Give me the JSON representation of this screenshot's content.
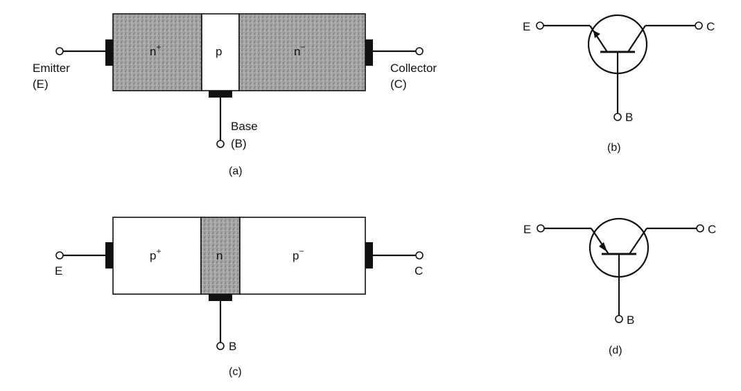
{
  "colors": {
    "ink": "#111111",
    "shaded_region": "#9a9a9a",
    "light_region": "#ffffff"
  },
  "panel_a": {
    "regions": {
      "left": "n",
      "left_sup": "+",
      "middle": "p",
      "right": "n",
      "right_sup": "−"
    },
    "labels": {
      "emitter": "Emitter",
      "emitter_abbr": "(E)",
      "collector": "Collector",
      "collector_abbr": "(C)",
      "base": "Base",
      "base_abbr": "(B)"
    },
    "caption": "(a)"
  },
  "panel_b": {
    "labels": {
      "emitter": "E",
      "collector": "C",
      "base": "B"
    },
    "caption": "(b)"
  },
  "panel_c": {
    "regions": {
      "left": "p",
      "left_sup": "+",
      "middle": "n",
      "right": "p",
      "right_sup": "−"
    },
    "labels": {
      "emitter": "E",
      "collector": "C",
      "base": "B"
    },
    "caption": "(c)"
  },
  "panel_d": {
    "labels": {
      "emitter": "E",
      "collector": "C",
      "base": "B"
    },
    "caption": "(d)"
  }
}
